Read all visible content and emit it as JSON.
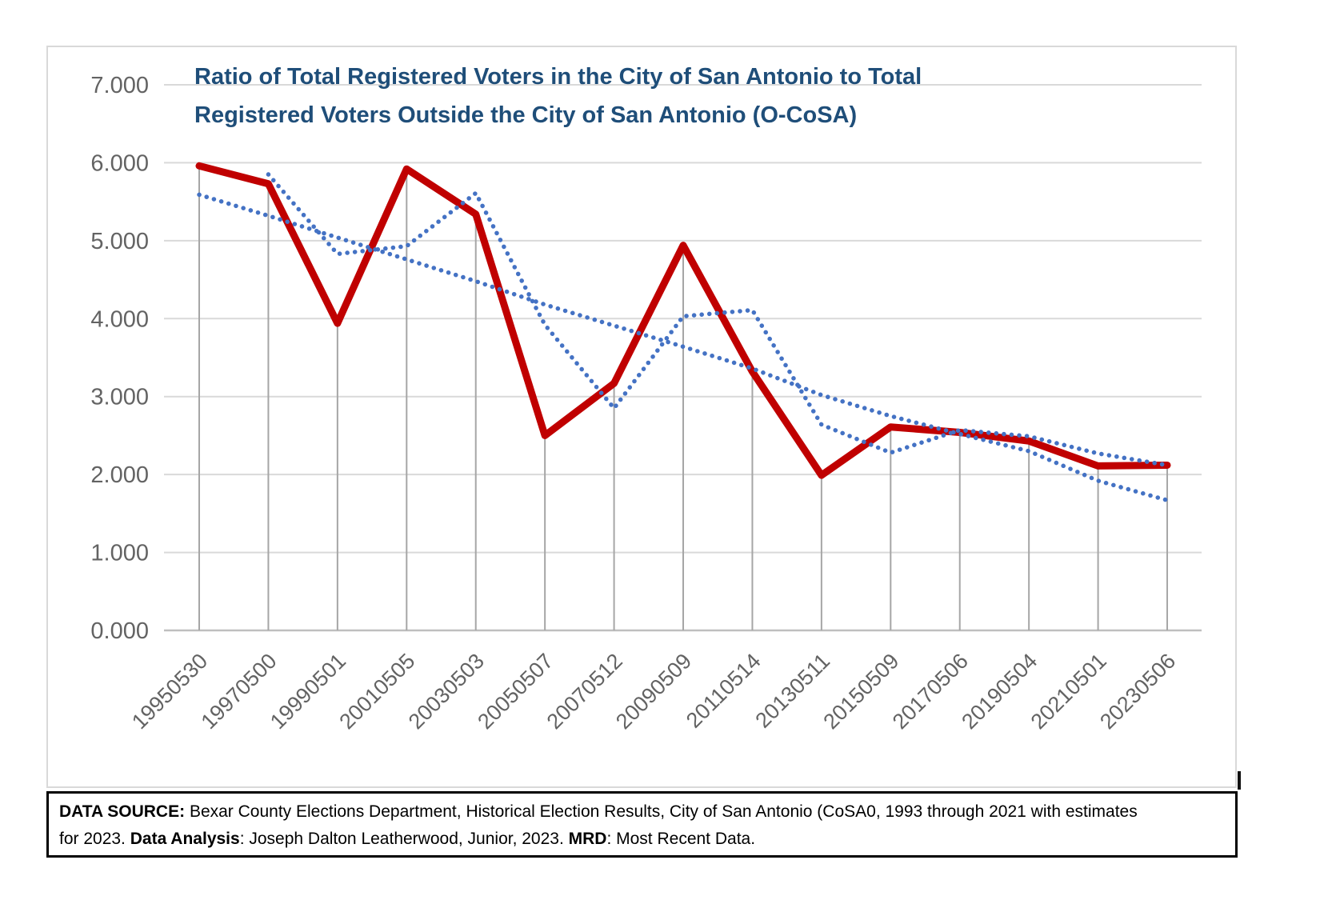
{
  "title": {
    "line1": "Ratio of Total Registered Voters in the City of San Antonio to Total",
    "line2": "Registered Voters Outside the City of San Antonio (O-CoSA)"
  },
  "colors": {
    "series_red": "#c00000",
    "series_blue_dotted": "#4472c4",
    "title_blue": "#1f4e79",
    "gridline": "#d9d9d9",
    "axis_line": "#bfbfbf",
    "drop_line": "#a6a6a6",
    "tick_label_gray": "#636363"
  },
  "chart_data": {
    "type": "line",
    "title": "Ratio of Total Registered Voters in the City of San Antonio to Total Registered Voters Outside the City of San Antonio (O-CoSA)",
    "categories": [
      "19950530",
      "19970500",
      "19990501",
      "20010505",
      "20030503",
      "20050507",
      "20070512",
      "20090509",
      "20110514",
      "20130511",
      "20150509",
      "20170506",
      "20190504",
      "20210501",
      "20230506"
    ],
    "series": [
      {
        "name": "solid-red-ratio-line",
        "style": "solid",
        "color": "#c00000",
        "values": [
          5.96,
          5.73,
          3.94,
          5.92,
          5.34,
          2.5,
          3.17,
          4.94,
          3.32,
          1.99,
          2.61,
          2.54,
          2.43,
          2.11,
          2.12
        ]
      },
      {
        "name": "dotted-blue-wavy-line",
        "style": "dotted",
        "color": "#4472c4",
        "values": [
          null,
          5.85,
          4.83,
          4.93,
          5.61,
          3.92,
          2.85,
          4.03,
          4.11,
          2.64,
          2.28,
          2.57,
          2.49,
          2.27,
          2.12
        ]
      },
      {
        "name": "dotted-blue-trend-line",
        "style": "dotted",
        "color": "#4472c4",
        "values": [
          5.59,
          5.32,
          5.04,
          4.76,
          4.48,
          4.18,
          3.91,
          3.64,
          3.36,
          3.02,
          2.75,
          2.52,
          2.3,
          1.92,
          1.67
        ]
      }
    ],
    "ylim": [
      0,
      7
    ],
    "yticks": [
      "0.000",
      "1.000",
      "2.000",
      "3.000",
      "4.000",
      "5.000",
      "6.000",
      "7.000"
    ],
    "grid": true,
    "drop_lines": true,
    "legend_position": "none",
    "x_label_rotation_deg": 45
  },
  "source_box": {
    "line1": [
      {
        "text": "DATA SOURCE:",
        "bold": true
      },
      {
        "text": " Bexar County Elections Department, Historical Election Results, City of San Antonio (CoSA0, 1993 through 2021 with estimates",
        "bold": false
      }
    ],
    "line2": [
      {
        "text": "for 2023.  ",
        "bold": false
      },
      {
        "text": "Data Analysis",
        "bold": true
      },
      {
        "text": ": Joseph Dalton Leatherwood, Junior, 2023.  ",
        "bold": false
      },
      {
        "text": "MRD",
        "bold": true
      },
      {
        "text": ": Most Recent Data.",
        "bold": false
      }
    ]
  }
}
